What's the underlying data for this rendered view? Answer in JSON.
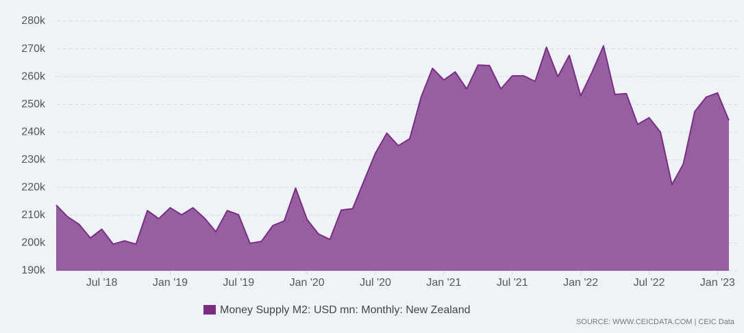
{
  "chart_data": {
    "type": "area",
    "categories": [
      null,
      null,
      null,
      null,
      "Jul '18",
      null,
      null,
      null,
      null,
      null,
      "Jan '19",
      null,
      null,
      null,
      null,
      null,
      "Jul '19",
      null,
      null,
      null,
      null,
      null,
      "Jan '20",
      null,
      null,
      null,
      null,
      null,
      "Jul '20",
      null,
      null,
      null,
      null,
      null,
      "Jan '21",
      null,
      null,
      null,
      null,
      null,
      "Jul '21",
      null,
      null,
      null,
      null,
      null,
      "Jan '22",
      null,
      null,
      null,
      null,
      null,
      "Jul '22",
      null,
      null,
      null,
      null,
      null,
      "Jan '23",
      null
    ],
    "series": [
      {
        "name": "Money Supply M2: USD mn: Monthly: New Zealand",
        "color": "#7b2d84",
        "fill": "#9660a0",
        "values": [
          213700,
          209500,
          206800,
          201800,
          205000,
          199600,
          200800,
          199600,
          211700,
          208800,
          212700,
          210200,
          212700,
          209000,
          204100,
          211700,
          210200,
          199900,
          200600,
          206300,
          208000,
          219800,
          208500,
          203300,
          201300,
          211900,
          212400,
          222500,
          232400,
          239600,
          235100,
          237600,
          252600,
          263000,
          258800,
          261700,
          255600,
          264200,
          264000,
          255600,
          260300,
          260300,
          258300,
          270600,
          260000,
          267700,
          253100,
          261700,
          271100,
          253600,
          253900,
          242800,
          245200,
          240000,
          221100,
          228500,
          247400,
          252600,
          254100,
          244200
        ]
      }
    ],
    "ylim": [
      190000,
      280000
    ],
    "yticks": [
      {
        "value": 190000,
        "label": "190k"
      },
      {
        "value": 200000,
        "label": "200k"
      },
      {
        "value": 210000,
        "label": "210k"
      },
      {
        "value": 220000,
        "label": "220k"
      },
      {
        "value": 230000,
        "label": "230k"
      },
      {
        "value": 240000,
        "label": "240k"
      },
      {
        "value": 250000,
        "label": "250k"
      },
      {
        "value": 260000,
        "label": "260k"
      },
      {
        "value": 270000,
        "label": "270k"
      },
      {
        "value": 280000,
        "label": "280k"
      }
    ],
    "grid": true,
    "source": "SOURCE: WWW.CEICDATA.COM | CEIC Data"
  }
}
